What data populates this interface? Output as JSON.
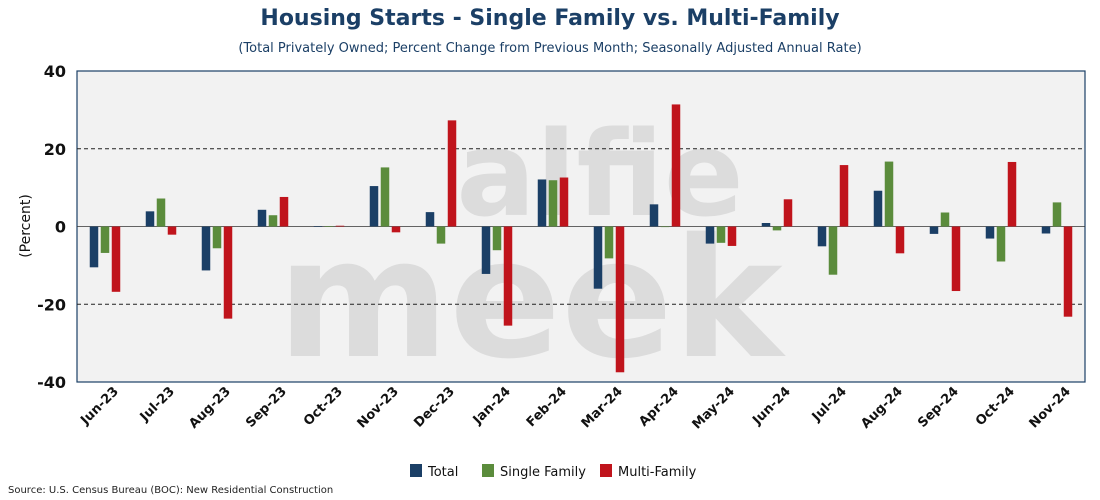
{
  "title": "Housing Starts - Single Family vs. Multi-Family",
  "subtitle": "(Total Privately Owned; Percent Change from Previous Month; Seasonally Adjusted Annual Rate)",
  "source": "Source: U.S. Census Bureau (BOC): New Residential Construction",
  "watermark": [
    "alfie",
    "meek"
  ],
  "colors": {
    "Total": "#1b3f66",
    "Single Family": "#5b8c3c",
    "Multi-Family": "#c0141c",
    "plot_bg": "#f2f2f2",
    "frame": "#1b3f66"
  },
  "chart_data": {
    "type": "bar",
    "title": "Housing Starts - Single Family vs. Multi-Family",
    "subtitle": "(Total Privately Owned; Percent Change from Previous Month; Seasonally Adjusted Annual Rate)",
    "xlabel": "",
    "ylabel": "(Percent)",
    "ylim": [
      -40,
      40
    ],
    "yticks": [
      -40,
      -20,
      0,
      20,
      40
    ],
    "grid": "dashed at -20 and 20",
    "legend_position": "bottom-center",
    "categories": [
      "Jun-23",
      "Jul-23",
      "Aug-23",
      "Sep-23",
      "Oct-23",
      "Nov-23",
      "Dec-23",
      "Jan-24",
      "Feb-24",
      "Mar-24",
      "Apr-24",
      "May-24",
      "Jun-24",
      "Jul-24",
      "Aug-24",
      "Sep-24",
      "Oct-24",
      "Nov-24"
    ],
    "series": [
      {
        "name": "Total",
        "values": [
          -10.5,
          3.9,
          -11.3,
          4.3,
          0.1,
          10.4,
          3.7,
          -12.2,
          12.1,
          -16.0,
          5.7,
          -4.4,
          0.9,
          -5.1,
          9.2,
          -1.9,
          -3.1,
          -1.8
        ]
      },
      {
        "name": "Single Family",
        "values": [
          -6.8,
          7.2,
          -5.6,
          2.9,
          0.1,
          15.2,
          -4.4,
          -6.1,
          11.9,
          -8.2,
          0.0,
          -4.2,
          -1.0,
          -12.4,
          16.7,
          3.6,
          -9.0,
          6.2
        ]
      },
      {
        "name": "Multi-Family",
        "values": [
          -16.8,
          -2.1,
          -23.7,
          7.6,
          0.2,
          -1.5,
          27.3,
          -25.5,
          12.6,
          -37.5,
          31.4,
          -5.0,
          7.0,
          15.8,
          -6.9,
          -16.6,
          16.6,
          -23.2
        ]
      }
    ]
  }
}
